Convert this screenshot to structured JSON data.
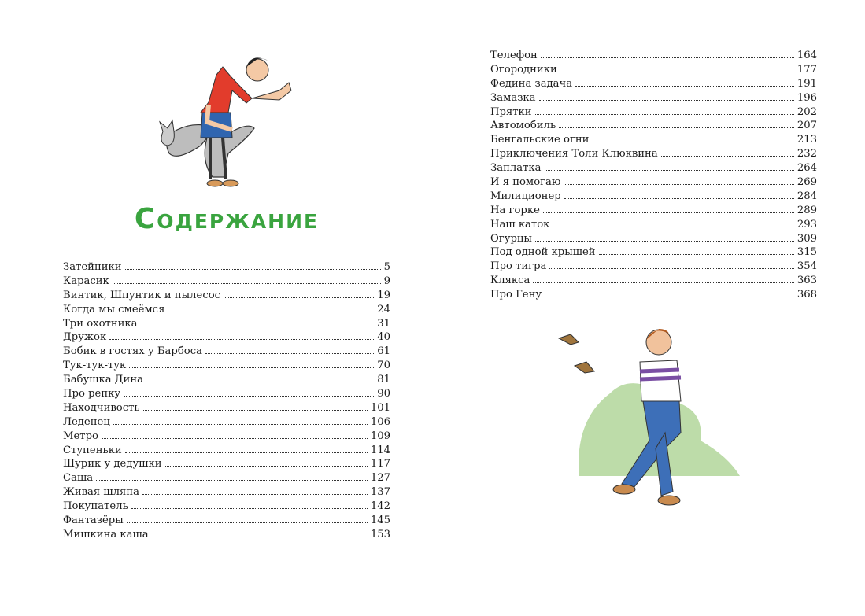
{
  "title": "Содержание",
  "colors": {
    "title": "#3aa43f"
  },
  "toc_left": [
    {
      "title": "Затейники",
      "page": "5"
    },
    {
      "title": "Карасик",
      "page": "9"
    },
    {
      "title": "Винтик, Шпунтик и пылесос",
      "page": "19"
    },
    {
      "title": "Когда мы смеёмся",
      "page": "24"
    },
    {
      "title": "Три охотника",
      "page": "31"
    },
    {
      "title": "Дружок",
      "page": "40"
    },
    {
      "title": "Бобик в гостях у Барбоса",
      "page": "61"
    },
    {
      "title": "Тук-тук-тук",
      "page": "70"
    },
    {
      "title": "Бабушка Дина",
      "page": "81"
    },
    {
      "title": "Про репку",
      "page": "90"
    },
    {
      "title": "Находчивость",
      "page": "101"
    },
    {
      "title": "Леденец",
      "page": "106"
    },
    {
      "title": "Метро",
      "page": "109"
    },
    {
      "title": "Ступеньки",
      "page": "114"
    },
    {
      "title": "Шурик у дедушки",
      "page": "117"
    },
    {
      "title": "Саша",
      "page": "127"
    },
    {
      "title": "Живая шляпа",
      "page": "137"
    },
    {
      "title": "Покупатель",
      "page": "142"
    },
    {
      "title": "Фантазёры",
      "page": "145"
    },
    {
      "title": "Мишкина каша",
      "page": "153"
    }
  ],
  "toc_right": [
    {
      "title": "Телефон",
      "page": "164"
    },
    {
      "title": "Огородники",
      "page": "177"
    },
    {
      "title": "Федина задача",
      "page": "191"
    },
    {
      "title": "Замазка",
      "page": "196"
    },
    {
      "title": "Прятки",
      "page": "202"
    },
    {
      "title": "Автомобиль",
      "page": "207"
    },
    {
      "title": "Бенгальские огни",
      "page": "213"
    },
    {
      "title": "Приключения Толи Клюквина",
      "page": "232"
    },
    {
      "title": "Заплатка",
      "page": "264"
    },
    {
      "title": "И я помогаю",
      "page": "269"
    },
    {
      "title": "Милиционер",
      "page": "284"
    },
    {
      "title": "На горке",
      "page": "289"
    },
    {
      "title": "Наш каток",
      "page": "293"
    },
    {
      "title": "Огурцы",
      "page": "309"
    },
    {
      "title": "Под одной крышей",
      "page": "315"
    },
    {
      "title": "Про тигра",
      "page": "354"
    },
    {
      "title": "Клякса",
      "page": "363"
    },
    {
      "title": "Про Гену",
      "page": "368"
    }
  ]
}
